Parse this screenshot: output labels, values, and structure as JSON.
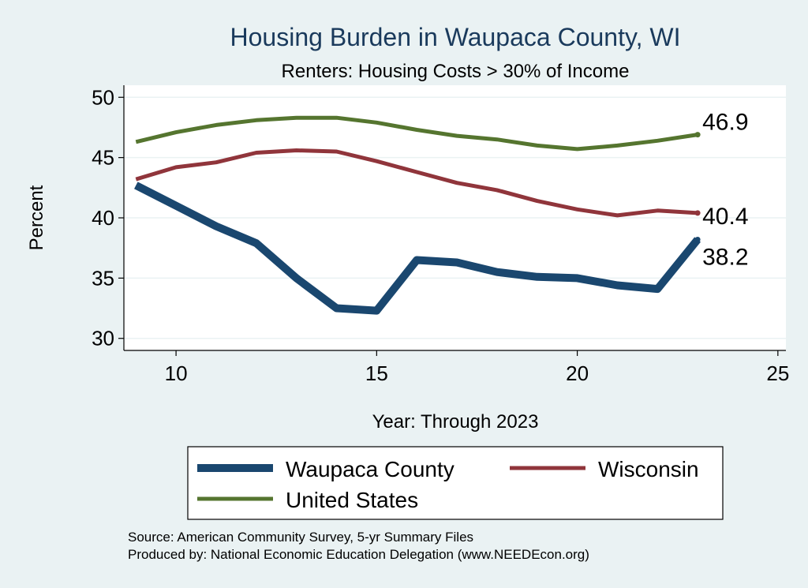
{
  "chart_data": {
    "type": "line",
    "title": "Housing Burden in Waupaca County, WI",
    "subtitle": "Renters: Housing Costs > 30% of Income",
    "xlabel": "Year: Through 2023",
    "ylabel": "Percent",
    "xlim": [
      8.7,
      25.2
    ],
    "ylim": [
      29,
      51
    ],
    "xticks": [
      10,
      15,
      20,
      25
    ],
    "yticks": [
      30,
      35,
      40,
      45,
      50
    ],
    "grid": true,
    "legend_position": "bottom",
    "series": [
      {
        "name": "Waupaca County",
        "color": "#1a476f",
        "x": [
          9,
          10,
          11,
          12,
          13,
          14,
          15,
          16,
          17,
          18,
          19,
          20,
          21,
          22,
          23
        ],
        "values": [
          42.7,
          41.0,
          39.3,
          37.9,
          35.0,
          32.5,
          32.3,
          36.5,
          36.3,
          35.5,
          35.1,
          35.0,
          34.4,
          34.1,
          38.2
        ],
        "end_label": "38.2"
      },
      {
        "name": "Wisconsin",
        "color": "#90353b",
        "x": [
          9,
          10,
          11,
          12,
          13,
          14,
          15,
          16,
          17,
          18,
          19,
          20,
          21,
          22,
          23
        ],
        "values": [
          43.2,
          44.2,
          44.6,
          45.4,
          45.6,
          45.5,
          44.7,
          43.8,
          42.9,
          42.3,
          41.4,
          40.7,
          40.2,
          40.6,
          40.4
        ],
        "end_label": "40.4"
      },
      {
        "name": "United States",
        "color": "#55752f",
        "x": [
          9,
          10,
          11,
          12,
          13,
          14,
          15,
          16,
          17,
          18,
          19,
          20,
          21,
          22,
          23
        ],
        "values": [
          46.3,
          47.1,
          47.7,
          48.1,
          48.3,
          48.3,
          47.9,
          47.3,
          46.8,
          46.5,
          46.0,
          45.7,
          46.0,
          46.4,
          46.9
        ],
        "end_label": "46.9"
      }
    ]
  },
  "source_lines": [
    "Source: American Community Survey, 5-yr Summary Files",
    "Produced by: National Economic Education Delegation (www.NEEDEcon.org)"
  ]
}
